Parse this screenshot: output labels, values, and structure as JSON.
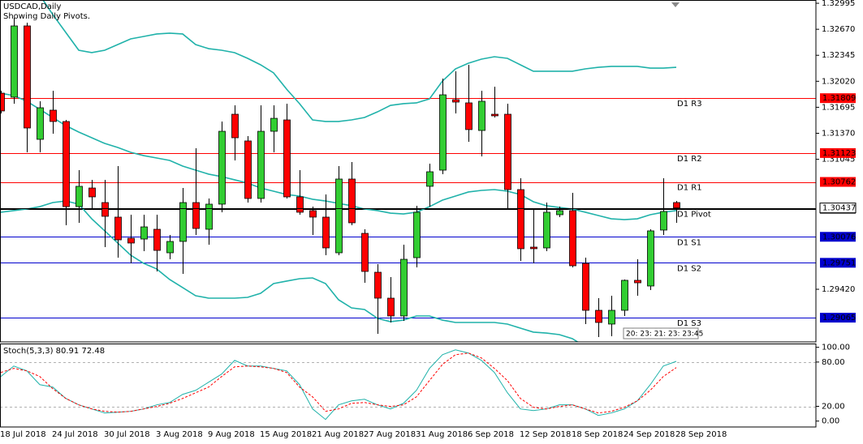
{
  "chart_data": [
    {
      "type": "candlestick",
      "title": "USDCAD,Daily",
      "subtitle": "Showing Daily Pivots.",
      "categories": [
        "18 Jul 2018",
        null,
        null,
        null,
        "24 Jul 2018",
        null,
        null,
        null,
        "30 Jul 2018",
        null,
        null,
        null,
        "3 Aug 2018",
        null,
        null,
        null,
        "9 Aug 2018",
        null,
        null,
        null,
        "15 Aug 2018",
        null,
        null,
        null,
        "21 Aug 2018",
        null,
        null,
        null,
        "27 Aug 2018",
        null,
        null,
        null,
        "31 Aug 2018",
        null,
        null,
        null,
        "6 Sep 2018",
        null,
        null,
        null,
        "12 Sep 2018",
        null,
        null,
        null,
        "18 Sep 2018",
        null,
        null,
        null,
        "24 Sep 2018",
        null,
        null,
        null,
        "28 Sep 2018"
      ],
      "open": [
        1.31871,
        1.31821,
        1.32712,
        1.31294,
        1.31659,
        1.31517,
        1.30453,
        1.30686,
        1.30504,
        1.30322,
        1.30058,
        1.30048,
        1.3017,
        1.29876,
        1.30018,
        1.30504,
        1.3017,
        1.30484,
        1.31608,
        1.31274,
        1.30555,
        1.31395,
        1.31537,
        1.30575,
        1.30403,
        1.30322,
        1.29876,
        1.30798,
        1.30119,
        1.29633,
        1.29309,
        1.29086,
        1.29815,
        1.30707,
        1.30909,
        1.3179,
        1.3175,
        1.31405,
        1.31608,
        1.31608,
        1.30666,
        1.29947,
        1.29937,
        1.30352,
        1.30403,
        1.29744,
        1.29157,
        1.28985,
        1.29157,
        1.29532,
        1.29461,
        1.3016,
        1.30504
      ],
      "high": [
        1.31902,
        1.32813,
        1.32752,
        1.3177,
        1.31902,
        1.31537,
        1.30909,
        1.30788,
        1.30788,
        1.3096,
        1.30352,
        1.30352,
        1.30352,
        1.30099,
        1.30686,
        1.31183,
        1.30555,
        1.31517,
        1.31719,
        1.31335,
        1.31719,
        1.31719,
        1.3174,
        1.30909,
        1.30453,
        1.30605,
        1.3096,
        1.3101,
        1.3017,
        1.29734,
        1.29572,
        1.29977,
        1.30464,
        1.3099,
        1.32054,
        1.32145,
        1.32226,
        1.31902,
        1.31952,
        1.3174,
        1.30808,
        1.30423,
        1.30504,
        1.30453,
        1.30626,
        1.29815,
        1.29309,
        1.29339,
        1.29542,
        1.29795,
        1.3017,
        1.30808,
        1.30524
      ],
      "low": [
        1.31618,
        1.3174,
        1.31132,
        1.31132,
        1.31365,
        1.3022,
        1.30251,
        1.30423,
        1.29947,
        1.29815,
        1.29744,
        1.29896,
        1.29643,
        1.29795,
        1.29613,
        1.30099,
        1.29977,
        1.30383,
        1.31031,
        1.30504,
        1.30504,
        1.31132,
        1.30555,
        1.30352,
        1.30099,
        1.29846,
        1.29846,
        1.3022,
        1.29501,
        1.28863,
        1.29005,
        1.29025,
        1.29694,
        1.30453,
        1.30859,
        1.31618,
        1.31264,
        1.31081,
        1.31567,
        1.30423,
        1.29775,
        1.29744,
        1.29896,
        1.30322,
        1.29694,
        1.28985,
        1.28823,
        1.28833,
        1.29086,
        1.29339,
        1.2941,
        1.30099,
        1.30251
      ],
      "close": [
        1.31649,
        1.32712,
        1.31436,
        1.31689,
        1.31517,
        1.30453,
        1.30707,
        1.30575,
        1.30332,
        1.30038,
        1.29998,
        1.302,
        1.29906,
        1.30018,
        1.30504,
        1.3018,
        1.30484,
        1.31395,
        1.31314,
        1.30555,
        1.31395,
        1.31557,
        1.30575,
        1.30383,
        1.30322,
        1.29937,
        1.30798,
        1.30251,
        1.29643,
        1.29309,
        1.29086,
        1.29795,
        1.30383,
        1.30889,
        1.31851,
        1.3176,
        1.31416,
        1.3177,
        1.31588,
        1.30666,
        1.29927,
        1.29927,
        1.30383,
        1.30403,
        1.29714,
        1.29157,
        1.29005,
        1.29157,
        1.29532,
        1.29501,
        1.3015,
        1.30393,
        1.30437
      ],
      "up_color": "#32cd32",
      "down_color": "#ff0000",
      "series": [
        {
          "color": "#20b2aa",
          "values": [
            null,
            null,
            null,
            1.33097,
            1.32854,
            1.32631,
            1.32408,
            1.32378,
            1.32408,
            1.32479,
            1.3255,
            1.3258,
            1.32611,
            1.32621,
            1.32611,
            1.32479,
            1.32428,
            1.32408,
            1.32378,
            1.32307,
            1.32226,
            1.32125,
            1.31922,
            1.3174,
            1.31537,
            1.31517,
            1.31517,
            1.31537,
            1.31567,
            1.31638,
            1.31719,
            1.3174,
            1.3175,
            1.318,
            1.32023,
            1.32175,
            1.32246,
            1.32297,
            1.32327,
            1.32307,
            1.32226,
            1.32145,
            1.32145,
            1.32145,
            1.32145,
            1.32175,
            1.32195,
            1.32206,
            1.32206,
            1.32206,
            1.32185,
            1.32185,
            1.32195
          ]
        },
        {
          "color": "#20b2aa",
          "values": [
            1.31871,
            1.31841,
            1.3177,
            1.31669,
            1.31567,
            1.31466,
            1.31385,
            1.31314,
            1.31243,
            1.31193,
            1.31132,
            1.31091,
            1.31061,
            1.31031,
            1.3096,
            1.30909,
            1.30859,
            1.30828,
            1.30788,
            1.30747,
            1.30686,
            1.30646,
            1.30605,
            1.30585,
            1.30545,
            1.30524,
            1.30494,
            1.30464,
            1.30423,
            1.30403,
            1.30372,
            1.30362,
            1.30383,
            1.30453,
            1.30534,
            1.30585,
            1.30636,
            1.30656,
            1.30666,
            1.30646,
            1.30605,
            1.30514,
            1.30464,
            1.30443,
            1.30423,
            1.30383,
            1.30342,
            1.30301,
            1.30291,
            1.30301,
            1.30352,
            1.30383,
            1.30403
          ]
        },
        {
          "color": "#20b2aa",
          "values": [
            1.30383,
            1.30403,
            1.30423,
            1.30453,
            1.30504,
            1.30524,
            1.30484,
            1.30301,
            1.3015,
            1.29998,
            1.29846,
            1.29744,
            1.29674,
            1.29542,
            1.29441,
            1.29339,
            1.29309,
            1.29309,
            1.29309,
            1.29319,
            1.2937,
            1.29491,
            1.29522,
            1.29552,
            1.29562,
            1.29491,
            1.29289,
            1.29187,
            1.29167,
            1.29056,
            1.29015,
            1.29035,
            1.29086,
            1.29086,
            1.29035,
            1.29005,
            1.29005,
            1.29005,
            1.29005,
            1.28985,
            1.28934,
            1.28884,
            1.28873,
            1.28853,
            1.28803,
            1.28701,
            null,
            null,
            null,
            null,
            null,
            null,
            null
          ]
        }
      ],
      "ylim": [
        1.28762,
        1.33036
      ],
      "yticks": [
        1.32995,
        {
          "value": 1.3267,
          "label": "1.32670"
        },
        1.32345,
        {
          "value": 1.3202,
          "label": "1.32020"
        },
        1.31695,
        {
          "value": 1.3137,
          "label": "1.31370"
        },
        1.31045,
        {
          "value": 1.2942,
          "label": "1.29420"
        }
      ],
      "levels": [
        {
          "name": "D1 R3",
          "value": 1.31809,
          "color": "#ff0000"
        },
        {
          "name": "D1 R2",
          "value": 1.31123,
          "color": "#ff0000"
        },
        {
          "name": "D1 R1",
          "value": 1.30762,
          "color": "#ff0000"
        },
        {
          "name": "D1 Pivot",
          "value": 1.30427,
          "color": "#000000"
        },
        {
          "name": "D1 S1",
          "value": 1.30076,
          "color": "#0000cd"
        },
        {
          "name": "D1 S2",
          "value": 1.29751,
          "color": "#0000cd"
        },
        {
          "name": "D1 S3",
          "value": 1.29065,
          "color": "#0000cd"
        }
      ],
      "current_price": 1.30437,
      "countdown": "20: 23: 21: 23: 23:45"
    },
    {
      "type": "line",
      "title": "Stoch(5,3,3) 80.91 72.48",
      "series": [
        {
          "color": "#20b2aa",
          "style": "solid",
          "values": [
            60.4,
            74.6,
            68.1,
            49.4,
            46.1,
            30.7,
            22.0,
            16.5,
            11.0,
            12.1,
            13.2,
            16.5,
            22.0,
            25.2,
            36.2,
            41.7,
            52.7,
            63.7,
            82.3,
            74.6,
            74.6,
            71.4,
            68.1,
            49.4,
            16.5,
            2.2,
            22.0,
            27.4,
            29.6,
            22.0,
            16.5,
            24.1,
            41.7,
            71.4,
            90.0,
            96.6,
            92.2,
            82.3,
            65.9,
            38.4,
            16.5,
            14.3,
            16.5,
            22.0,
            22.0,
            16.5,
            7.7,
            11.0,
            16.5,
            27.4,
            49.4,
            74.6,
            80.91
          ]
        },
        {
          "color": "#ff0000",
          "style": "dashed",
          "values": [
            65.9,
            71.4,
            68.1,
            60.4,
            43.9,
            30.7,
            22.0,
            16.5,
            13.2,
            12.1,
            13.2,
            16.5,
            19.8,
            24.1,
            30.7,
            38.4,
            46.1,
            60.4,
            73.5,
            74.6,
            73.5,
            71.4,
            65.9,
            46.1,
            32.9,
            13.2,
            16.5,
            24.1,
            25.2,
            22.0,
            19.8,
            22.0,
            32.9,
            54.9,
            76.8,
            90.0,
            92.2,
            85.6,
            71.4,
            54.9,
            30.7,
            18.7,
            16.5,
            19.8,
            22.0,
            16.5,
            11.0,
            13.2,
            18.7,
            27.4,
            41.7,
            60.4,
            72.48
          ]
        }
      ],
      "ylim": [
        -8,
        104
      ],
      "yticks": [
        {
          "value": 100,
          "label": "100.00"
        },
        {
          "value": 80,
          "label": "80.00"
        },
        {
          "value": 20,
          "label": "20.00"
        },
        {
          "value": 0,
          "label": "0.00"
        }
      ],
      "levels": [
        80,
        20
      ]
    }
  ]
}
